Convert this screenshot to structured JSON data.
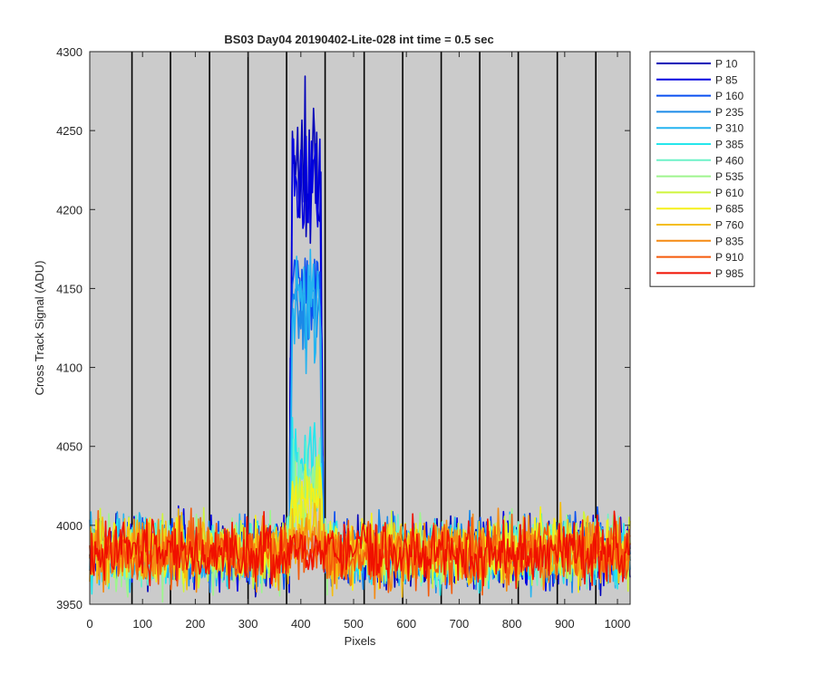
{
  "chart_data": {
    "type": "line",
    "title": "BS03 Day04 20190402-Lite-028 int time = 0.5 sec",
    "xlabel": "Pixels",
    "ylabel": "Cross Track Signal (ADU)",
    "xlim": [
      0,
      1024
    ],
    "ylim": [
      3950,
      4300
    ],
    "xticks": [
      "0",
      "100",
      "200",
      "300",
      "400",
      "500",
      "600",
      "700",
      "800",
      "900",
      "1000"
    ],
    "yticks": [
      "3950",
      "4000",
      "4050",
      "4100",
      "4150",
      "4200",
      "4250",
      "4300"
    ],
    "xtick_values": [
      0,
      100,
      200,
      300,
      400,
      500,
      600,
      700,
      800,
      900,
      1000
    ],
    "ytick_values": [
      3950,
      4000,
      4050,
      4100,
      4150,
      4200,
      4250,
      4300
    ],
    "vertical_lines_x": [
      80,
      153,
      227,
      300,
      373,
      446,
      520,
      593,
      666,
      739,
      812,
      886,
      959
    ],
    "background_color": "#cbcbcb",
    "grid": false,
    "legend_position": "outside-right",
    "baseline_level": 3983,
    "noise_range": [
      3952,
      4018
    ],
    "peak_window_x": [
      378,
      443
    ],
    "series": [
      {
        "name": "P 10",
        "color": "#0000b8",
        "peak_level": 4225,
        "peak_max": 4298
      },
      {
        "name": "P 85",
        "color": "#0000e0",
        "peak_level": 4222,
        "peak_max": 4247
      },
      {
        "name": "P 160",
        "color": "#0a4ff0",
        "peak_level": 4150,
        "peak_max": 4170
      },
      {
        "name": "P 235",
        "color": "#1b8ae8",
        "peak_level": 4135,
        "peak_max": 4150
      },
      {
        "name": "P 310",
        "color": "#25b4f0",
        "peak_level": 4140,
        "peak_max": 4190
      },
      {
        "name": "P 385",
        "color": "#25e6ec",
        "peak_level": 4040,
        "peak_max": 4080
      },
      {
        "name": "P 460",
        "color": "#6ef2c8",
        "peak_level": 4030,
        "peak_max": 4060
      },
      {
        "name": "P 535",
        "color": "#9ef58e",
        "peak_level": 4020,
        "peak_max": 4045
      },
      {
        "name": "P 610",
        "color": "#cff53c",
        "peak_level": 4020,
        "peak_max": 4045
      },
      {
        "name": "P 685",
        "color": "#f5f01a",
        "peak_level": 4018,
        "peak_max": 4067
      },
      {
        "name": "P 760",
        "color": "#f5be10",
        "peak_level": 3995,
        "peak_max": 4025
      },
      {
        "name": "P 835",
        "color": "#f58a12",
        "peak_level": 3990,
        "peak_max": 4005
      },
      {
        "name": "P 910",
        "color": "#f55a0a",
        "peak_level": 3985,
        "peak_max": 3998
      },
      {
        "name": "P 985",
        "color": "#f01000",
        "peak_level": 3985,
        "peak_max": 3995
      }
    ]
  }
}
